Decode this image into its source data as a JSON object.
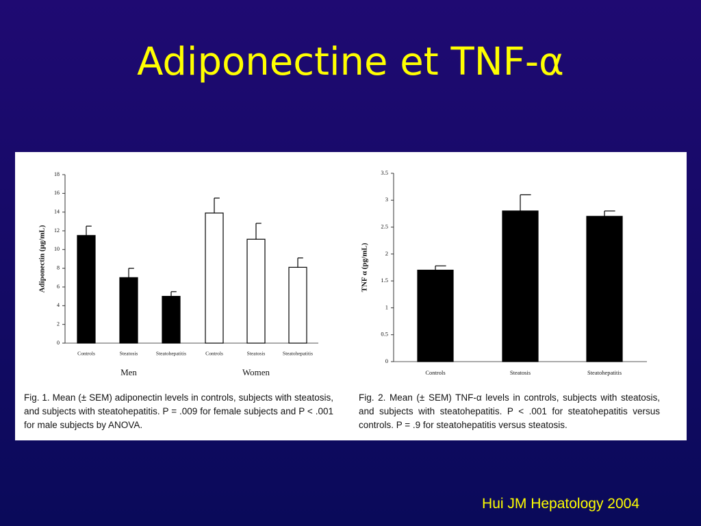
{
  "slide": {
    "title": "Adiponectine et TNF-α",
    "source": "Hui JM Hepatology 2004"
  },
  "chart_data": [
    {
      "type": "bar",
      "y_label": "Adiponectin (μg/mL)",
      "ylim": [
        0,
        18
      ],
      "yticks": [
        0,
        2,
        4,
        6,
        8,
        10,
        12,
        14,
        16,
        18
      ],
      "error_bars": true,
      "series": [
        {
          "name": "Men",
          "color": "#000000",
          "categories": [
            "Controls",
            "Steatosis",
            "Steatohepatitis"
          ],
          "values": [
            11.5,
            7,
            5
          ],
          "errors": [
            1,
            1,
            0.5
          ]
        },
        {
          "name": "Women",
          "color": "#ffffff",
          "categories": [
            "Controls",
            "Steatosis",
            "Steatohepatitis"
          ],
          "values": [
            13.9,
            11.1,
            8.1
          ],
          "errors": [
            1.6,
            1.7,
            1
          ]
        }
      ],
      "caption": "Fig. 1.  Mean (± SEM) adiponectin levels in controls, subjects with steatosis, and subjects with steatohepatitis. P = .009 for female subjects and P < .001 for male subjects by ANOVA."
    },
    {
      "type": "bar",
      "y_label": "TNF α (pg/mL)",
      "ylim": [
        0,
        3.5
      ],
      "yticks": [
        0,
        0.5,
        1,
        1.5,
        2,
        2.5,
        3,
        3.5
      ],
      "error_bars": true,
      "series": [
        {
          "color": "#000000",
          "categories": [
            "Controls",
            "Steatosis",
            "Steatohepatitis"
          ],
          "values": [
            1.7,
            2.8,
            2.7
          ],
          "errors": [
            0.08,
            0.3,
            0.1
          ]
        }
      ],
      "caption": "Fig. 2.  Mean (± SEM) TNF-α levels in controls, subjects with steatosis, and subjects with steatohepatitis. P < .001 for steatohepatitis versus controls. P = .9 for steatohepatitis versus steatosis."
    }
  ]
}
